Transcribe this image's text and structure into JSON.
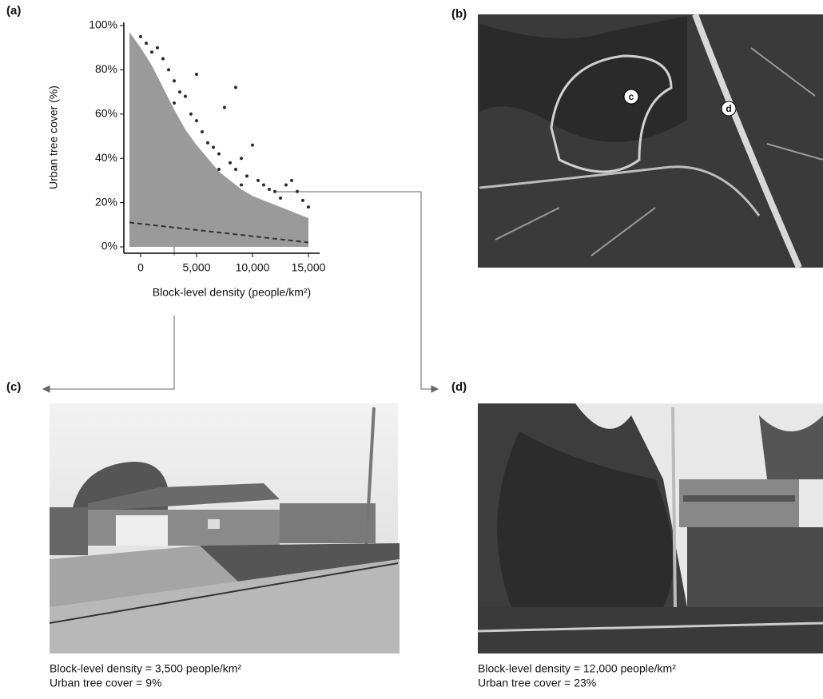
{
  "chart_data": {
    "type": "scatter",
    "x_label": "Block-level density (people/km²)",
    "y_label": "Urban tree cover (%)",
    "xlim": [
      -1500,
      16000
    ],
    "ylim": [
      0,
      100
    ],
    "xticks": [
      0,
      {
        "value": 5000,
        "label": "5,000"
      },
      {
        "value": 10000,
        "label": "10,000"
      },
      {
        "value": 15000,
        "label": "15,000"
      }
    ],
    "yticks": [
      {
        "value": 0,
        "label": "0%"
      },
      {
        "value": 20,
        "label": "20%"
      },
      {
        "value": 40,
        "label": "40%"
      },
      {
        "value": 60,
        "label": "60%"
      },
      {
        "value": 80,
        "label": "80%"
      },
      {
        "value": 100,
        "label": "100%"
      }
    ],
    "series": [
      {
        "type": "area",
        "color": "#9a9a9a",
        "x": [
          -1000,
          0,
          1000,
          2000,
          3000,
          4000,
          5000,
          6000,
          7000,
          8000,
          9000,
          10000,
          11000,
          12000,
          13000,
          14000,
          15000
        ],
        "values": [
          97,
          90,
          82,
          72,
          62,
          53,
          46,
          40,
          34,
          30,
          26,
          23,
          21,
          19,
          17,
          15,
          13
        ]
      },
      {
        "type": "scatter",
        "color": "#2a2a2a",
        "x": [
          0,
          500,
          1000,
          1500,
          2000,
          2500,
          3000,
          3500,
          3000,
          4000,
          4500,
          5000,
          5500,
          6000,
          6500,
          7000,
          5000,
          8500,
          7500,
          8000,
          8500,
          9000,
          9500,
          10000,
          10500,
          11000,
          11500,
          12000,
          12500,
          13000,
          13500,
          14000,
          14500,
          15000,
          9000,
          7000
        ],
        "values": [
          95,
          92,
          88,
          90,
          85,
          80,
          75,
          70,
          65,
          68,
          60,
          57,
          52,
          47,
          45,
          42,
          78,
          72,
          63,
          38,
          35,
          40,
          32,
          46,
          30,
          28,
          26,
          25,
          22,
          28,
          30,
          25,
          21,
          18,
          28,
          35
        ]
      },
      {
        "type": "line",
        "color": "#333333",
        "dashed": true,
        "x": [
          -1000,
          15000
        ],
        "values": [
          11,
          2
        ]
      }
    ]
  },
  "panels": {
    "a": {
      "label": "(a)"
    },
    "b": {
      "label": "(b)",
      "markers": [
        "c",
        "d"
      ]
    },
    "c": {
      "label": "(c)",
      "caption": [
        "Block-level density = 3,500 people/km²",
        "Urban tree cover = 9%"
      ]
    },
    "d": {
      "label": "(d)",
      "caption": [
        "Block-level density = 12,000 people/km²",
        "Urban tree cover = 23%"
      ]
    }
  }
}
